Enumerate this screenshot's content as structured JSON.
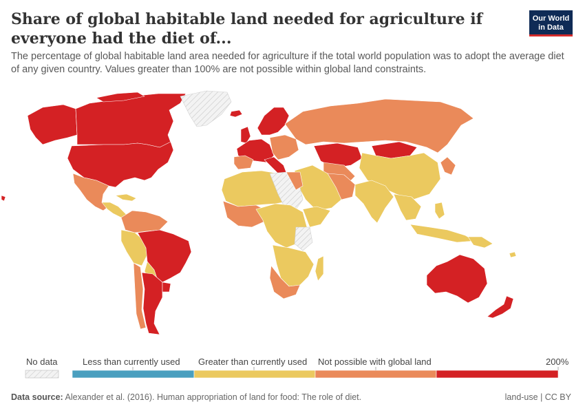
{
  "header": {
    "title": "Share of global habitable land needed for agriculture if everyone had the diet of...",
    "subtitle": "The percentage of global habitable land area needed for agriculture if the total world population was to adopt the average diet of any given country. Values greater than 100% are not possible within global land constraints.",
    "logo_line1": "Our World",
    "logo_line2": "in Data"
  },
  "legend": {
    "no_data": "No data",
    "less": "Less than currently used",
    "greater": "Greater than currently used",
    "not_possible": "Not possible with global land",
    "max": "200%"
  },
  "colors": {
    "less": "#4a9fbf",
    "greater": "#ebc95f",
    "not_possible": "#ea8a5a",
    "extreme": "#d42124",
    "no_data": "#f2f2f2",
    "logo_bg": "#0f2b56",
    "logo_accent": "#d42b2b"
  },
  "footer": {
    "source_label": "Data source:",
    "source_text": "Alexander et al. (2016). Human appropriation of land for food: The role of diet.",
    "license": "land-use | CC BY"
  }
}
